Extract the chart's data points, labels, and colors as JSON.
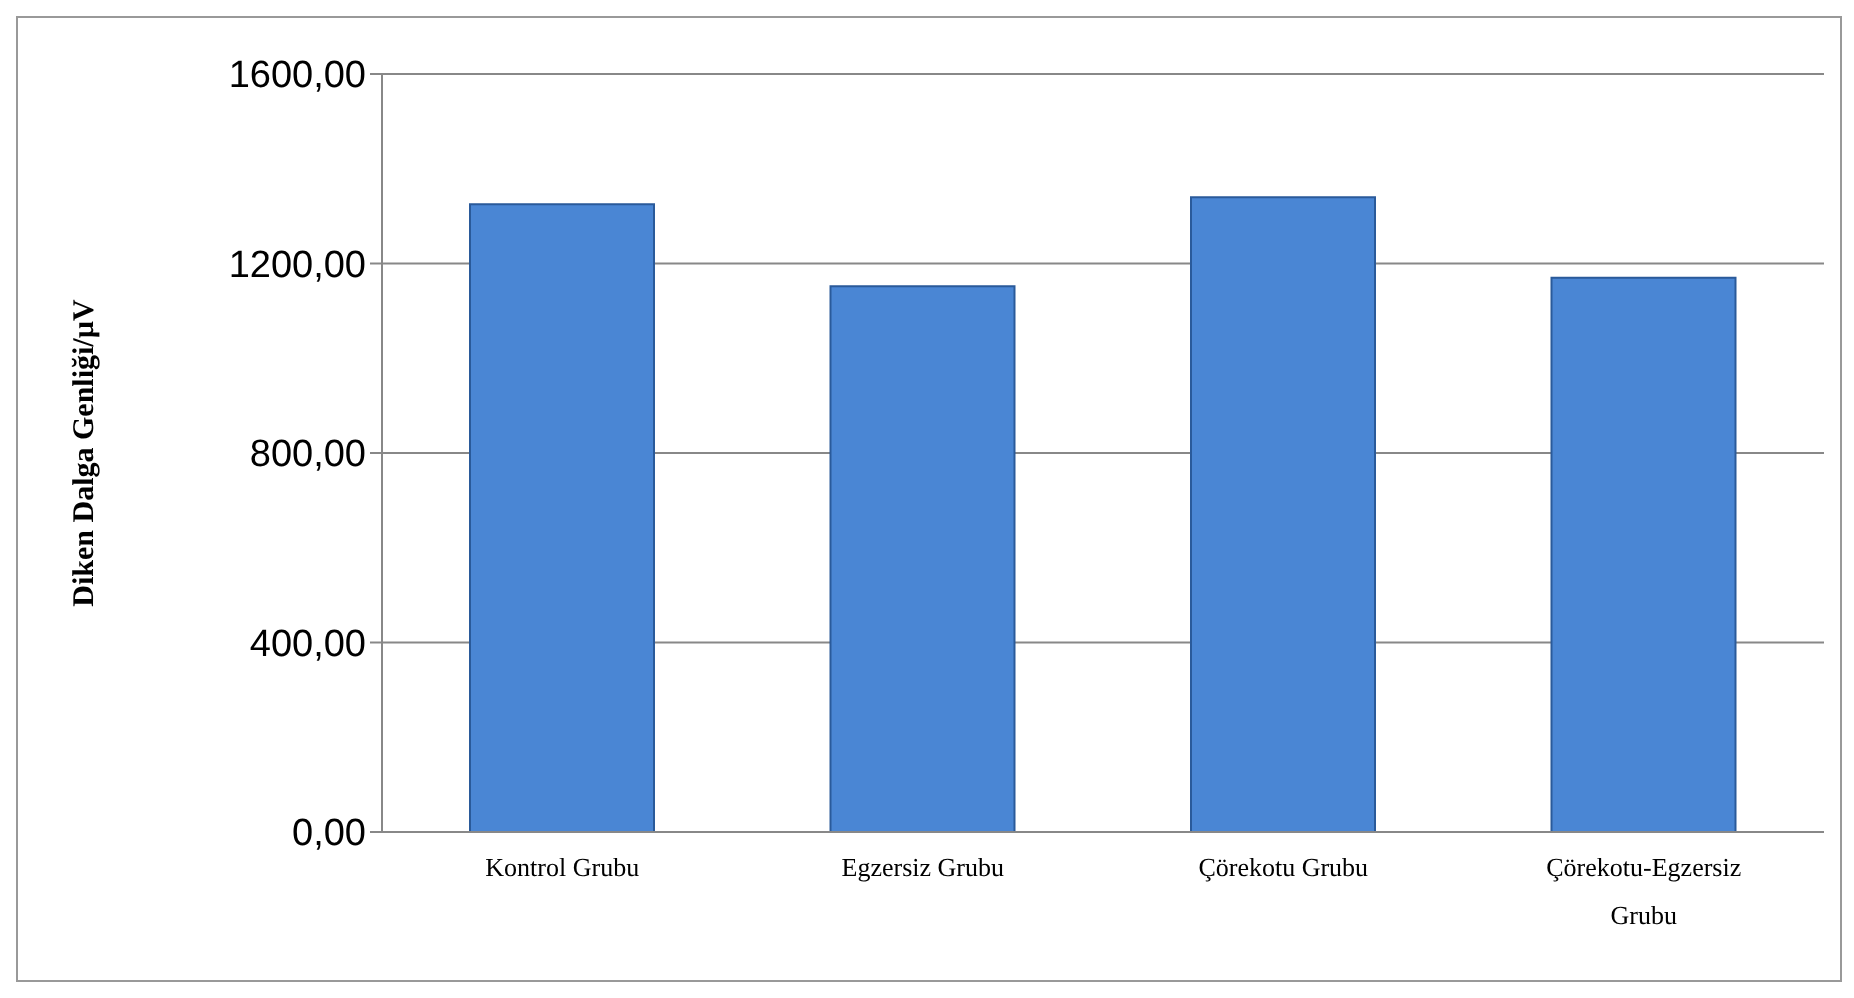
{
  "chart_data": {
    "type": "bar",
    "ylabel": "Diken Dalga Genliği/µV",
    "categories": [
      "Kontrol Grubu",
      "Egzersiz Grubu",
      "Çörekotu Grubu",
      "Çörekotu-Egzersiz Grubu"
    ],
    "values": [
      1325,
      1152,
      1340,
      1170
    ],
    "color": "#4a86d4",
    "ylim": [
      0,
      1600
    ],
    "yticks": [
      {
        "value": 0,
        "label": "0,00"
      },
      {
        "value": 400,
        "label": "400,00"
      },
      {
        "value": 800,
        "label": "800,00"
      },
      {
        "value": 1200,
        "label": "1200,00"
      },
      {
        "value": 1600,
        "label": "1600,00"
      }
    ],
    "grid": "y",
    "legend": false
  }
}
